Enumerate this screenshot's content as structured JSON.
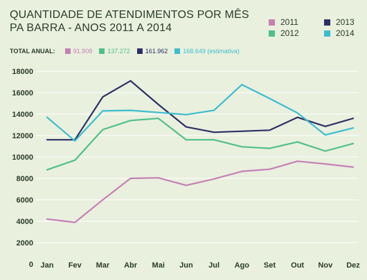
{
  "title_lines": [
    "Quantidade de atendimentos por mês",
    "Pa Barra - anos 2011 a 2014"
  ],
  "totals_label": "TOTAL ANUAL:",
  "totals": [
    {
      "year": "2011",
      "text": "91.908",
      "color": "#c77fb5"
    },
    {
      "year": "2012",
      "text": "137.272",
      "color": "#4fbf8c"
    },
    {
      "year": "2013",
      "text": "161.962",
      "color": "#2b2f66"
    },
    {
      "year": "2014",
      "text": "168.649 (estimativa)",
      "color": "#3cbdce"
    }
  ],
  "legend": [
    {
      "name": "2011",
      "color": "#c77fb5"
    },
    {
      "name": "2013",
      "color": "#2b2f66"
    },
    {
      "name": "2012",
      "color": "#4fbf8c"
    },
    {
      "name": "2014",
      "color": "#3cbdce"
    }
  ],
  "chart_data": {
    "type": "line",
    "title": "Quantidade de atendimentos por mês Pa Barra - anos 2011 a 2014",
    "categories": [
      "Jan",
      "Fev",
      "Mar",
      "Abr",
      "Mai",
      "Jun",
      "Jul",
      "Ago",
      "Set",
      "Out",
      "Nov",
      "Dez"
    ],
    "y_ticks": [
      0,
      2000,
      4000,
      6000,
      8000,
      10000,
      12000,
      14000,
      16000,
      18000
    ],
    "ylim": [
      0,
      18000
    ],
    "grid": true,
    "legend_position": "top-right",
    "series": [
      {
        "name": "2011",
        "color": "#c77fb5",
        "values": [
          4200,
          3900,
          6000,
          8000,
          8050,
          7350,
          7950,
          8650,
          8850,
          9600,
          9350,
          9050
        ]
      },
      {
        "name": "2012",
        "color": "#4fbf8c",
        "values": [
          8800,
          9700,
          12550,
          13400,
          13600,
          11600,
          11600,
          10950,
          10800,
          11400,
          10550,
          11250
        ]
      },
      {
        "name": "2013",
        "color": "#2b2f66",
        "values": [
          11600,
          11600,
          15600,
          17100,
          14900,
          12800,
          12300,
          12400,
          12500,
          13700,
          12850,
          13600
        ]
      },
      {
        "name": "2014",
        "color": "#3cbdce",
        "values": [
          13700,
          11500,
          14300,
          14350,
          14150,
          13950,
          14350,
          16750,
          15450,
          14100,
          12050,
          12700
        ]
      }
    ]
  }
}
